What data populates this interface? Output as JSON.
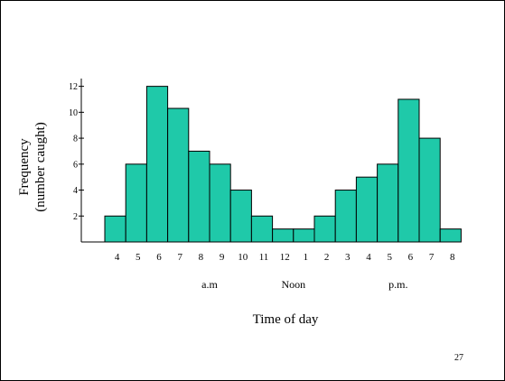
{
  "slide": {
    "number": "27"
  },
  "colors": {
    "bar_fill": "#1fc9a9",
    "bar_stroke": "#000000",
    "axis": "#000000",
    "text": "#000000"
  },
  "chart_data": {
    "type": "bar",
    "title": "",
    "xlabel": "Time of day",
    "ylabel_lines": [
      "Frequency",
      "(number caught)"
    ],
    "categories": [
      "4",
      "5",
      "6",
      "7",
      "8",
      "9",
      "10",
      "11",
      "12",
      "1",
      "2",
      "3",
      "4",
      "5",
      "6",
      "7",
      "8"
    ],
    "values": [
      2,
      6,
      12,
      10.3,
      7,
      6,
      4,
      2,
      1,
      1,
      2,
      4,
      5,
      6,
      11,
      8,
      1
    ],
    "y_ticks": [
      2,
      4,
      6,
      8,
      10,
      12
    ],
    "ylim": [
      0,
      12.6
    ],
    "grid": false,
    "group_labels": [
      {
        "text": "a.m",
        "center_index": 4.5
      },
      {
        "text": "Noon",
        "center_index": 8.5
      },
      {
        "text": "p.m.",
        "center_index": 13.5
      }
    ]
  }
}
